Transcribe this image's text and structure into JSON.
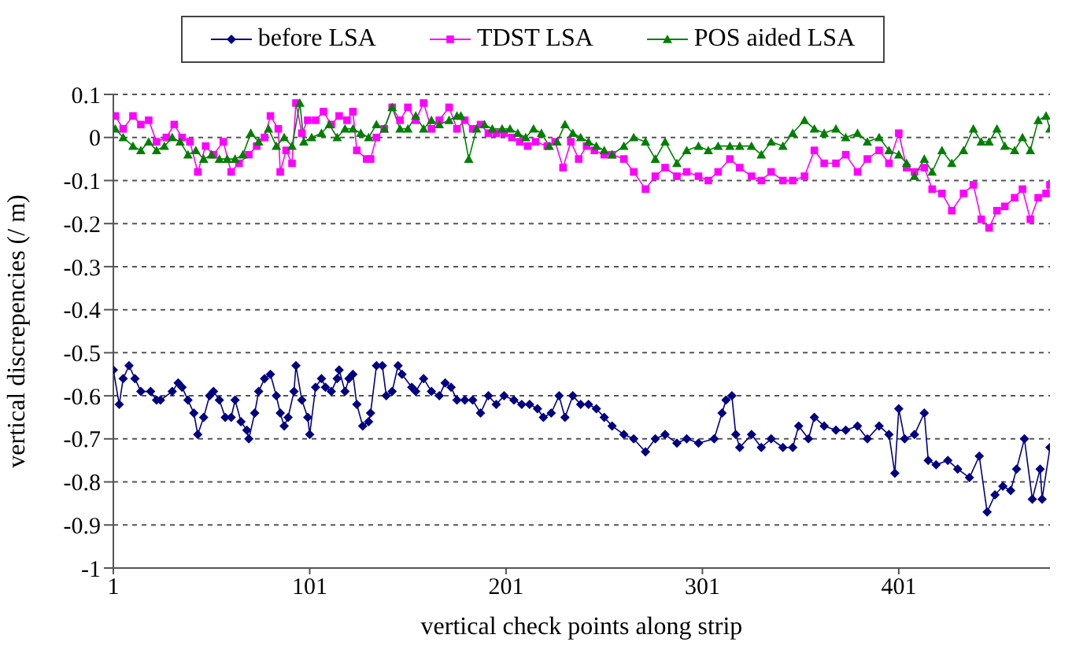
{
  "chart_data": {
    "type": "line",
    "xlabel": "vertical check points along strip",
    "ylabel": "vertical discrepencies (/ m)",
    "xlim": [
      1,
      478
    ],
    "xticks": [
      1,
      101,
      201,
      301,
      401
    ],
    "ylim": [
      -1,
      0.1
    ],
    "yticks": [
      -1,
      -0.9,
      -0.8,
      -0.7,
      -0.6,
      -0.5,
      -0.4,
      -0.3,
      -0.2,
      -0.1,
      0,
      0.1
    ],
    "grid": "y",
    "legend": "top",
    "line_style": "solid",
    "series": [
      {
        "name": "before LSA",
        "color": "#000080",
        "marker": "diamond",
        "x": [
          1,
          4,
          6,
          9,
          12,
          15,
          20,
          23,
          25,
          31,
          34,
          36,
          39,
          42,
          44,
          47,
          50,
          52,
          55,
          58,
          61,
          63,
          66,
          69,
          70,
          73,
          75,
          78,
          81,
          84,
          86,
          88,
          90,
          93,
          94,
          97,
          100,
          101,
          104,
          107,
          109,
          112,
          115,
          116,
          119,
          121,
          123,
          125,
          128,
          131,
          132,
          135,
          138,
          140,
          143,
          146,
          148,
          153,
          155,
          159,
          163,
          167,
          170,
          173,
          176,
          180,
          184,
          188,
          192,
          196,
          200,
          205,
          209,
          213,
          217,
          220,
          224,
          228,
          231,
          235,
          239,
          243,
          247,
          251,
          255,
          261,
          266,
          272,
          277,
          282,
          288,
          293,
          299,
          307,
          311,
          313,
          316,
          318,
          320,
          326,
          331,
          336,
          342,
          347,
          350,
          355,
          358,
          363,
          369,
          374,
          380,
          385,
          391,
          396,
          399,
          401,
          404,
          409,
          414,
          416,
          420,
          426,
          431,
          437,
          442,
          446,
          450,
          454,
          458,
          461,
          465,
          469,
          473,
          474,
          478
        ],
        "values": [
          -0.54,
          -0.62,
          -0.56,
          -0.53,
          -0.56,
          -0.59,
          -0.59,
          -0.61,
          -0.61,
          -0.59,
          -0.57,
          -0.58,
          -0.61,
          -0.64,
          -0.69,
          -0.65,
          -0.6,
          -0.59,
          -0.61,
          -0.65,
          -0.65,
          -0.61,
          -0.66,
          -0.68,
          -0.7,
          -0.64,
          -0.59,
          -0.56,
          -0.55,
          -0.6,
          -0.64,
          -0.67,
          -0.65,
          -0.59,
          -0.53,
          -0.61,
          -0.65,
          -0.69,
          -0.58,
          -0.56,
          -0.58,
          -0.59,
          -0.56,
          -0.54,
          -0.59,
          -0.56,
          -0.55,
          -0.62,
          -0.67,
          -0.66,
          -0.64,
          -0.53,
          -0.53,
          -0.6,
          -0.59,
          -0.53,
          -0.55,
          -0.58,
          -0.59,
          -0.56,
          -0.59,
          -0.6,
          -0.57,
          -0.58,
          -0.61,
          -0.61,
          -0.61,
          -0.64,
          -0.6,
          -0.62,
          -0.6,
          -0.61,
          -0.62,
          -0.62,
          -0.63,
          -0.65,
          -0.64,
          -0.6,
          -0.65,
          -0.6,
          -0.62,
          -0.62,
          -0.63,
          -0.65,
          -0.67,
          -0.69,
          -0.7,
          -0.73,
          -0.7,
          -0.69,
          -0.71,
          -0.7,
          -0.71,
          -0.7,
          -0.64,
          -0.61,
          -0.6,
          -0.69,
          -0.72,
          -0.69,
          -0.72,
          -0.7,
          -0.72,
          -0.72,
          -0.67,
          -0.7,
          -0.65,
          -0.67,
          -0.68,
          -0.68,
          -0.67,
          -0.7,
          -0.67,
          -0.69,
          -0.78,
          -0.63,
          -0.7,
          -0.69,
          -0.64,
          -0.75,
          -0.76,
          -0.75,
          -0.77,
          -0.79,
          -0.74,
          -0.87,
          -0.83,
          -0.81,
          -0.82,
          -0.77,
          -0.7,
          -0.84,
          -0.77,
          -0.84,
          -0.72
        ]
      },
      {
        "name": "TDST LSA",
        "color": "#ff00ff",
        "marker": "square",
        "x": [
          2,
          6,
          11,
          15,
          19,
          23,
          28,
          32,
          36,
          40,
          44,
          48,
          52,
          57,
          61,
          65,
          70,
          74,
          78,
          81,
          85,
          86,
          89,
          92,
          94,
          97,
          100,
          104,
          108,
          112,
          116,
          120,
          123,
          125,
          130,
          132,
          135,
          139,
          143,
          147,
          151,
          155,
          159,
          163,
          167,
          172,
          176,
          180,
          184,
          188,
          192,
          196,
          200,
          204,
          208,
          212,
          216,
          222,
          226,
          230,
          234,
          238,
          242,
          246,
          251,
          255,
          261,
          266,
          272,
          277,
          282,
          288,
          293,
          299,
          304,
          309,
          315,
          320,
          326,
          331,
          336,
          342,
          347,
          353,
          358,
          363,
          369,
          374,
          380,
          385,
          391,
          396,
          401,
          405,
          409,
          414,
          418,
          423,
          428,
          434,
          439,
          443,
          447,
          451,
          455,
          460,
          464,
          468,
          472,
          476,
          478
        ],
        "values": [
          0.05,
          0.02,
          0.05,
          0.03,
          0.04,
          -0.01,
          0,
          0.03,
          0,
          -0.01,
          -0.08,
          -0.02,
          -0.04,
          -0.01,
          -0.08,
          -0.06,
          -0.04,
          -0.02,
          0,
          0.05,
          0.02,
          -0.08,
          -0.03,
          -0.06,
          0.08,
          0.01,
          0.04,
          0.04,
          0.06,
          0.03,
          0.05,
          0.04,
          0.06,
          -0.03,
          -0.05,
          -0.05,
          0,
          0.02,
          0.07,
          0.04,
          0.07,
          0.04,
          0.08,
          0.02,
          0.04,
          0.07,
          0.02,
          0.04,
          0.02,
          0.03,
          0.01,
          0.01,
          0.01,
          0,
          -0.01,
          -0.02,
          -0.01,
          -0.02,
          -0.01,
          -0.07,
          -0.01,
          -0.05,
          -0.02,
          -0.03,
          -0.04,
          -0.04,
          -0.05,
          -0.08,
          -0.12,
          -0.09,
          -0.07,
          -0.09,
          -0.08,
          -0.09,
          -0.1,
          -0.08,
          -0.05,
          -0.07,
          -0.09,
          -0.1,
          -0.08,
          -0.1,
          -0.1,
          -0.09,
          -0.03,
          -0.06,
          -0.06,
          -0.04,
          -0.08,
          -0.05,
          -0.03,
          -0.06,
          0.01,
          -0.07,
          -0.08,
          -0.07,
          -0.12,
          -0.13,
          -0.17,
          -0.13,
          -0.11,
          -0.19,
          -0.21,
          -0.17,
          -0.16,
          -0.14,
          -0.12,
          -0.19,
          -0.14,
          -0.13,
          -0.11
        ]
      },
      {
        "name": "POS aided LSA",
        "color": "#008000",
        "marker": "triangle",
        "x": [
          2,
          6,
          11,
          15,
          19,
          23,
          27,
          31,
          35,
          39,
          43,
          47,
          51,
          55,
          59,
          63,
          67,
          71,
          75,
          80,
          84,
          88,
          92,
          96,
          98,
          102,
          107,
          111,
          115,
          119,
          123,
          127,
          131,
          135,
          139,
          143,
          147,
          151,
          155,
          159,
          163,
          167,
          172,
          176,
          178,
          182,
          186,
          190,
          194,
          199,
          203,
          207,
          211,
          215,
          219,
          223,
          227,
          231,
          235,
          239,
          243,
          247,
          251,
          255,
          261,
          266,
          272,
          277,
          282,
          288,
          293,
          299,
          304,
          309,
          315,
          320,
          326,
          331,
          336,
          342,
          347,
          353,
          358,
          363,
          369,
          374,
          380,
          385,
          391,
          396,
          401,
          405,
          409,
          414,
          418,
          423,
          428,
          434,
          439,
          443,
          447,
          451,
          455,
          460,
          464,
          468,
          472,
          476,
          478
        ],
        "values": [
          0.02,
          0,
          -0.02,
          -0.03,
          -0.01,
          -0.03,
          -0.02,
          0,
          -0.01,
          -0.04,
          -0.03,
          -0.05,
          -0.04,
          -0.05,
          -0.05,
          -0.05,
          -0.04,
          0.01,
          -0.01,
          0.02,
          -0.02,
          0,
          -0.02,
          0.08,
          -0.01,
          0,
          0.01,
          0.03,
          0,
          0.02,
          0.02,
          0.01,
          0,
          0.03,
          0.02,
          0.07,
          0.02,
          0.02,
          0.05,
          0.02,
          0.04,
          0.03,
          0.04,
          0.05,
          0.05,
          -0.05,
          0.02,
          0.03,
          0.02,
          0.02,
          0.02,
          0.01,
          0,
          0.02,
          0.01,
          -0.02,
          -0.01,
          0.03,
          0.01,
          0,
          -0.01,
          -0.02,
          -0.03,
          -0.04,
          -0.02,
          0,
          -0.01,
          -0.05,
          -0.01,
          -0.06,
          -0.03,
          -0.02,
          -0.03,
          -0.02,
          -0.02,
          -0.02,
          -0.02,
          -0.04,
          -0.01,
          -0.02,
          0.01,
          0.04,
          0.02,
          0.01,
          0.02,
          0,
          0.01,
          -0.01,
          0,
          -0.03,
          -0.04,
          -0.06,
          -0.09,
          -0.05,
          -0.08,
          -0.03,
          -0.06,
          -0.03,
          0.02,
          -0.01,
          -0.01,
          0.02,
          -0.02,
          -0.03,
          0,
          -0.03,
          0.04,
          0.05,
          0.02
        ]
      }
    ]
  }
}
